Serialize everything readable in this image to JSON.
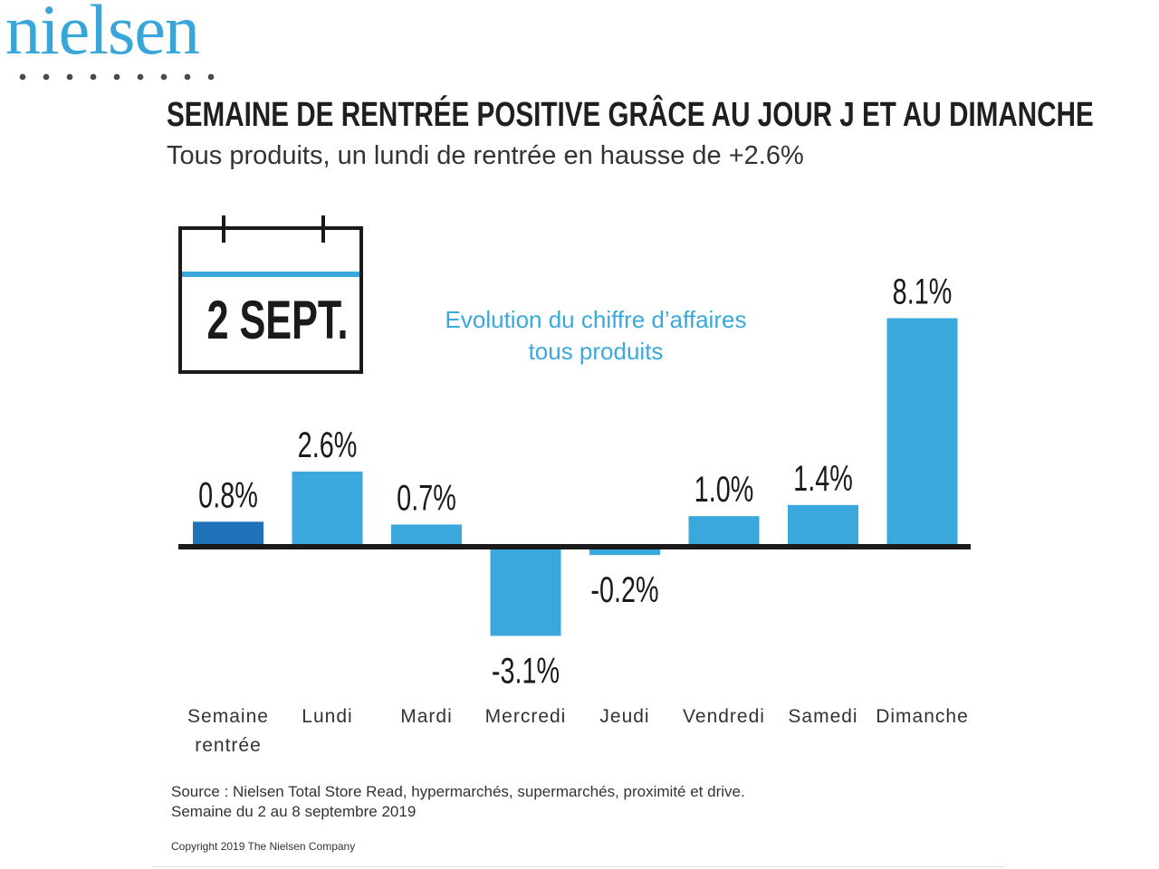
{
  "logo": {
    "text": "nielsen"
  },
  "header": {
    "title": "SEMAINE DE RENTRÉE POSITIVE GRÂCE AU JOUR J ET AU DIMANCHE",
    "subtitle": "Tous produits, un lundi de rentrée en hausse de +2.6%"
  },
  "calendar": {
    "date_label": "2 SEPT."
  },
  "note": {
    "line1": "Evolution du chiffre d’affaires",
    "line2": "tous produits"
  },
  "chart_data": {
    "type": "bar",
    "categories": [
      "Semaine rentrée",
      "Lundi",
      "Mardi",
      "Mercredi",
      "Jeudi",
      "Vendredi",
      "Samedi",
      "Dimanche"
    ],
    "category_lines": [
      [
        "Semaine",
        "rentrée"
      ],
      [
        "Lundi"
      ],
      [
        "Mardi"
      ],
      [
        "Mercredi"
      ],
      [
        "Jeudi"
      ],
      [
        "Vendredi"
      ],
      [
        "Samedi"
      ],
      [
        "Dimanche"
      ]
    ],
    "values": [
      0.8,
      2.6,
      0.7,
      -3.1,
      -0.2,
      1.0,
      1.4,
      8.1
    ],
    "value_labels": [
      "0.8%",
      "2.6%",
      "0.7%",
      "-3.1%",
      "-0.2%",
      "1.0%",
      "1.4%",
      "8.1%"
    ],
    "unit": "%",
    "colors": {
      "highlight": "#1f72b8",
      "bar": "#3aa8dc",
      "axis": "#1a1a1a"
    },
    "highlight_index": 0
  },
  "footer": {
    "source_line1": "Source : Nielsen Total Store Read, hypermarchés, supermarchés, proximité et drive.",
    "source_line2": "Semaine du 2 au 8 septembre 2019",
    "copyright": "Copyright 2019 The Nielsen Company"
  }
}
